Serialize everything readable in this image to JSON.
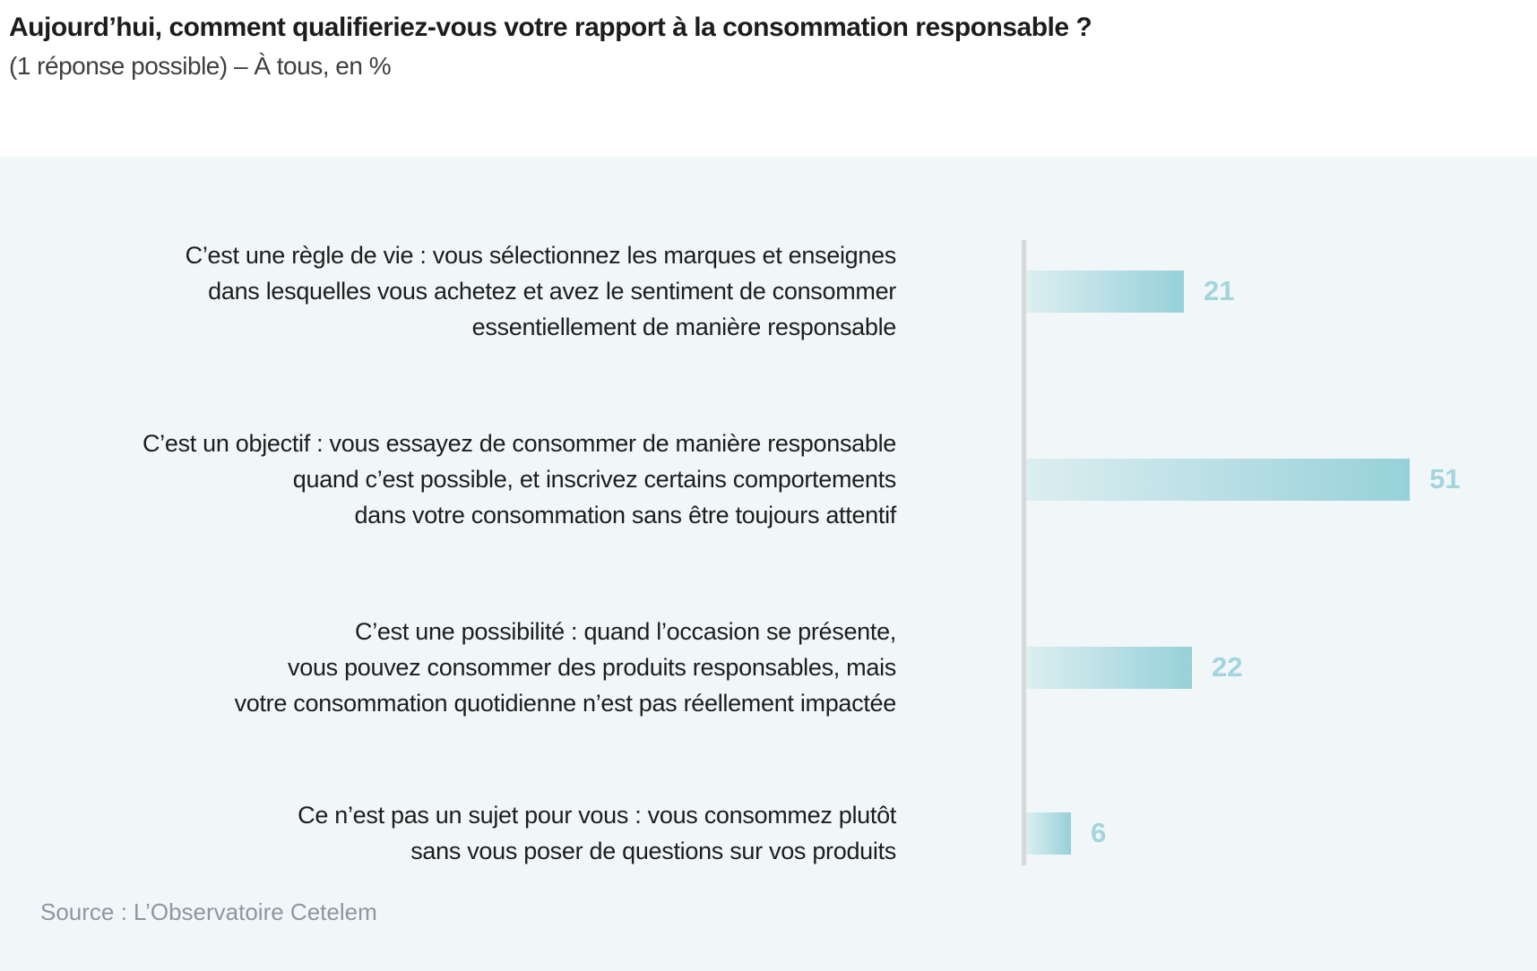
{
  "header": {
    "title": "Aujourd’hui, comment qualifieriez-vous votre rapport à la consommation responsable ?",
    "subtitle": "(1 réponse possible) – À tous, en %"
  },
  "chart_data": {
    "type": "bar",
    "orientation": "horizontal",
    "title": "Aujourd’hui, comment qualifieriez-vous votre rapport à la consommation responsable ?",
    "subtitle": "(1 réponse possible) – À tous, en %",
    "unit": "%",
    "categories": [
      "C’est une règle de vie : vous sélectionnez les marques et enseignes dans lesquelles vous achetez et avez le sentiment de consommer essentiellement de manière responsable",
      "C’est un objectif : vous essayez de consommer de manière responsable quand c’est possible, et inscrivez certains comportements dans votre consommation sans être toujours attentif",
      "C’est une possibilité : quand l’occasion se présente, vous pouvez consommer des produits responsables, mais votre consommation quotidienne n’est pas réellement impactée",
      "Ce n’est pas un sujet pour vous : vous consommez plutôt sans vous poser de questions sur vos produits"
    ],
    "label_lines": [
      [
        "C’est une règle de vie : vous sélectionnez les marques et enseignes",
        "dans lesquelles vous achetez et avez le sentiment de consommer",
        "essentiellement de manière responsable"
      ],
      [
        "C’est un objectif : vous essayez de consommer de manière responsable",
        "quand c’est possible, et inscrivez certains comportements",
        "dans votre consommation sans être toujours attentif"
      ],
      [
        "C’est une possibilité : quand l’occasion se présente,",
        "vous pouvez consommer des produits responsables, mais",
        "votre consommation quotidienne n’est pas réellement impactée"
      ],
      [
        "Ce n’est pas un sujet pour vous : vous consommez plutôt",
        "sans vous poser de questions sur vos produits"
      ]
    ],
    "values": [
      21,
      51,
      22,
      6
    ],
    "xlim": [
      0,
      51
    ],
    "value_labels_shown": true,
    "legend": "none",
    "grid": false
  },
  "source": "Source : L’Observatoire Cetelem",
  "colors": {
    "panel_bg": "#f1f6f9",
    "bar_gradient_start": "#dceef1",
    "bar_gradient_end": "#96d1d9",
    "value_label": "#a2d5dc",
    "axis_line": "#d8d8d8",
    "title_text": "#1d1d1b",
    "subtitle_text": "#3f3f3f",
    "label_text": "#1d1d1b",
    "source_text": "#8e979e"
  }
}
